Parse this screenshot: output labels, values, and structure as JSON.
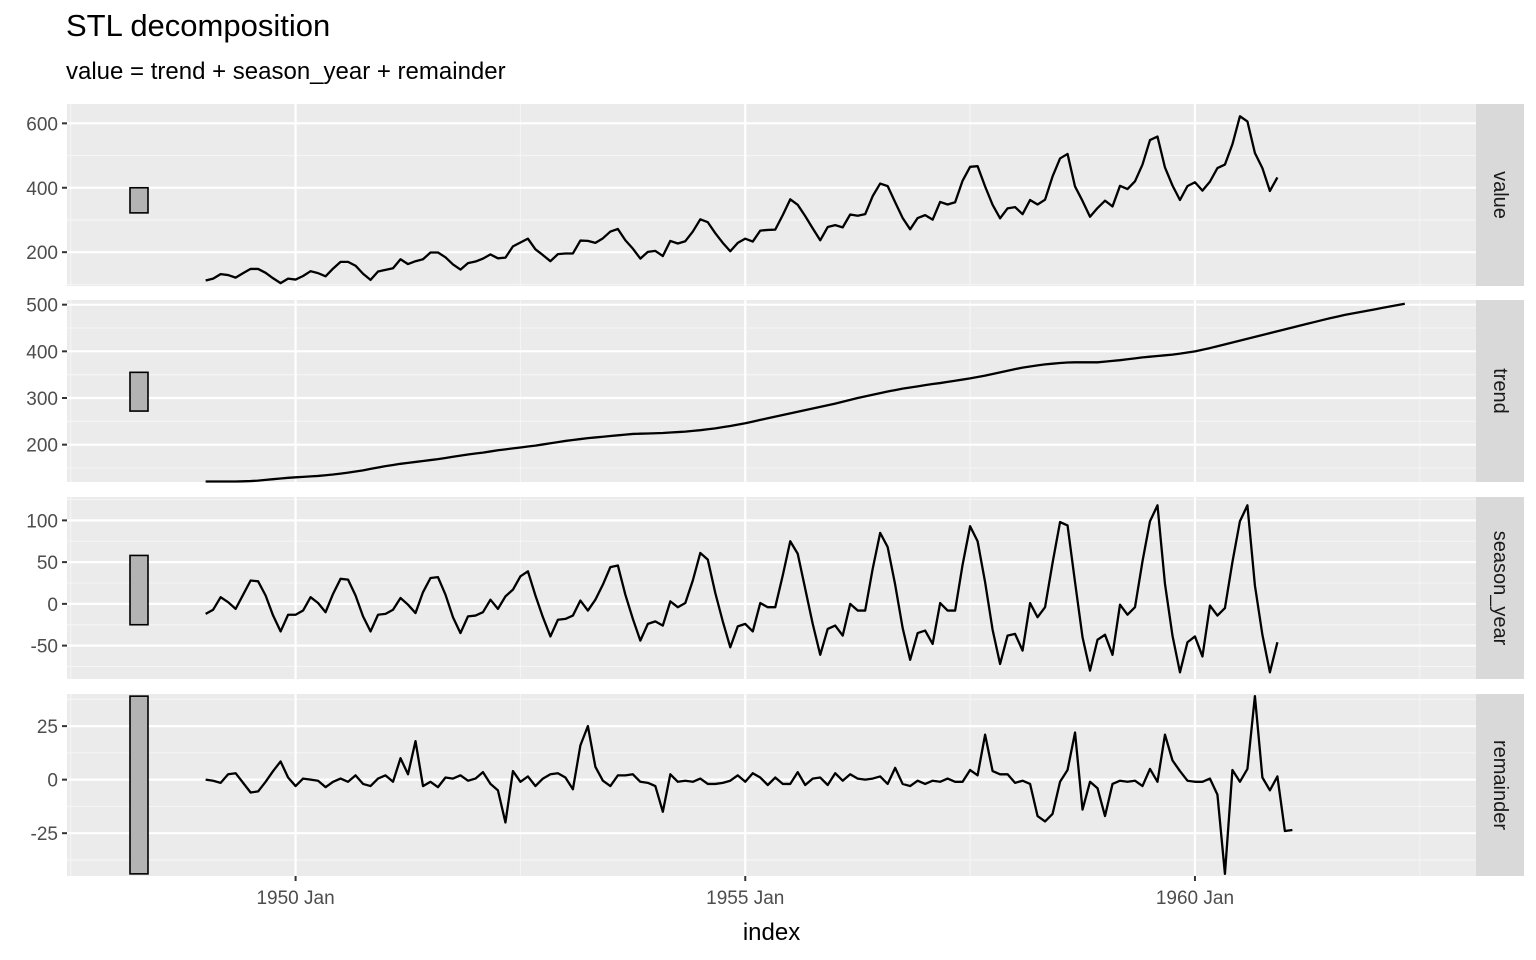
{
  "chart_data": {
    "type": "line",
    "title": "STL decomposition",
    "subtitle": "value = trend + season_year + remainder",
    "xlabel": "index",
    "x_start": "1949 Jan",
    "x_frequency": "monthly",
    "x_ticks": [
      "1950 Jan",
      "1955 Jan",
      "1960 Jan"
    ],
    "grid": true,
    "panels": [
      {
        "name": "value",
        "ylim": [
          95,
          660
        ],
        "yticks": [
          200,
          400,
          600
        ],
        "range_bar": [
          322,
          400
        ],
        "values": [
          112,
          118,
          132,
          129,
          121,
          135,
          148,
          148,
          136,
          119,
          104,
          118,
          115,
          126,
          141,
          135,
          125,
          149,
          170,
          170,
          158,
          133,
          114,
          140,
          145,
          150,
          178,
          163,
          172,
          178,
          199,
          199,
          184,
          162,
          146,
          166,
          171,
          180,
          193,
          181,
          183,
          218,
          230,
          242,
          209,
          191,
          172,
          194,
          196,
          196,
          236,
          235,
          229,
          243,
          264,
          272,
          237,
          211,
          180,
          201,
          204,
          188,
          235,
          227,
          234,
          264,
          302,
          293,
          259,
          229,
          203,
          229,
          242,
          233,
          267,
          269,
          270,
          315,
          364,
          347,
          312,
          274,
          237,
          278,
          284,
          277,
          317,
          313,
          318,
          374,
          413,
          405,
          355,
          306,
          271,
          306,
          315,
          301,
          356,
          348,
          355,
          422,
          465,
          467,
          404,
          347,
          305,
          336,
          340,
          318,
          362,
          348,
          363,
          435,
          491,
          505,
          404,
          359,
          310,
          337,
          360,
          342,
          406,
          396,
          420,
          472,
          548,
          559,
          463,
          407,
          362,
          405,
          417,
          391,
          419,
          461,
          472,
          535,
          622,
          606,
          508,
          461,
          390,
          432
        ]
      },
      {
        "name": "trend",
        "ylim": [
          120,
          510
        ],
        "yticks": [
          200,
          300,
          400,
          500
        ],
        "range_bar": [
          272,
          355
        ],
        "values": [
          121,
          121,
          121,
          121,
          121,
          121.5,
          122,
          123,
          124.5,
          126,
          127.5,
          129,
          130,
          131,
          132,
          133,
          134.5,
          136,
          138,
          140,
          142.5,
          145,
          148,
          151,
          154,
          156.5,
          159,
          161,
          163,
          165,
          167,
          169,
          171.5,
          174,
          176.5,
          179,
          181,
          183,
          185.5,
          188,
          190,
          192,
          194,
          196,
          198,
          200.5,
          203,
          205.5,
          208,
          210,
          212,
          214,
          215.5,
          217,
          218.5,
          220,
          221.5,
          223,
          223.5,
          224,
          224.5,
          225,
          226,
          227,
          228,
          229.5,
          231,
          233,
          235,
          237.5,
          240,
          243,
          246,
          249.5,
          253,
          256.5,
          260,
          263.5,
          267,
          270.5,
          274,
          277.5,
          281,
          284.5,
          288,
          292,
          296,
          300,
          303.5,
          307,
          310.5,
          314,
          317,
          320,
          322.5,
          325,
          327.5,
          330,
          332,
          334.5,
          337,
          339.5,
          342,
          345,
          348,
          351.5,
          355,
          358.5,
          362,
          365,
          367.5,
          370,
          372,
          373.5,
          375,
          376,
          376.5,
          376.5,
          376.5,
          376.5,
          378,
          379.5,
          381,
          383,
          385,
          387,
          388.5,
          390,
          391.5,
          393,
          395,
          397.5,
          400,
          403.5,
          407,
          411,
          415,
          419,
          423,
          427,
          431,
          435,
          439,
          443,
          447,
          451,
          455,
          459,
          463,
          467,
          471,
          474.5,
          478,
          481,
          484,
          487,
          490,
          493,
          496,
          499,
          502
        ]
      },
      {
        "name": "season_year",
        "ylim": [
          -90,
          128
        ],
        "yticks": [
          -50,
          0,
          50,
          100
        ],
        "range_bar": [
          -25,
          58
        ],
        "values": [
          -12,
          -7,
          8,
          2,
          -6,
          11,
          28,
          27,
          10,
          -14,
          -33,
          -13,
          -13,
          -8,
          8,
          1,
          -10,
          12,
          30,
          29,
          10,
          -15,
          -33,
          -13,
          -12,
          -7,
          7,
          -1,
          -11,
          14,
          31,
          32,
          11,
          -16,
          -35,
          -15,
          -14,
          -10,
          5,
          -6,
          9,
          17,
          33,
          39,
          10,
          -16,
          -39,
          -19,
          -18,
          -14,
          4,
          -8,
          5,
          23,
          44,
          46,
          11,
          -18,
          -44,
          -24,
          -21,
          -26,
          3,
          -4,
          1,
          28,
          61,
          53,
          13,
          -21,
          -52,
          -27,
          -24,
          -33,
          1,
          -4,
          -4,
          34,
          75,
          60,
          18,
          -24,
          -61,
          -30,
          -26,
          -38,
          0,
          -8,
          -8,
          42,
          85,
          68,
          23,
          -29,
          -67,
          -35,
          -32,
          -48,
          1,
          -8,
          -8,
          47,
          93,
          75,
          26,
          -31,
          -72,
          -38,
          -36,
          -56,
          1,
          -16,
          -4,
          49,
          98,
          94,
          26,
          -40,
          -80,
          -43,
          -37,
          -61,
          -1,
          -13,
          -4,
          51,
          99,
          118,
          24,
          -38,
          -82,
          -46,
          -39,
          -63,
          -2,
          -14,
          -5,
          50,
          99,
          118,
          22,
          -37,
          -82,
          -46
        ]
      },
      {
        "name": "remainder",
        "ylim": [
          -45,
          40
        ],
        "yticks": [
          -25,
          0,
          25
        ],
        "range_bar": [
          -44,
          39
        ],
        "values": [
          0,
          -0.5,
          -1.5,
          2.5,
          3,
          -1.5,
          -6,
          -5.5,
          -1,
          4,
          8.5,
          1,
          -3,
          0.5,
          0,
          -0.5,
          -3.5,
          -1,
          0.5,
          -1,
          2,
          -2,
          -3,
          0.5,
          2,
          -1,
          10,
          2.5,
          18,
          -3,
          -1,
          -3.5,
          1,
          0.5,
          2,
          -0.5,
          0.5,
          3.5,
          -2,
          -5,
          -20,
          4,
          -1,
          1.5,
          -3,
          0.5,
          2.5,
          3,
          1,
          -4.5,
          16,
          25,
          6,
          -0.5,
          -3,
          2,
          2,
          2.5,
          -1,
          -1.5,
          -3,
          -15,
          2.5,
          -1,
          -0.5,
          -1,
          0.5,
          -2,
          -2,
          -1.5,
          -0.5,
          2,
          -1,
          3,
          1,
          -2.5,
          1,
          -2,
          -2,
          3.5,
          -2.5,
          0.5,
          1,
          -2.5,
          3,
          -0.5,
          2.5,
          0.5,
          0,
          0.5,
          1.5,
          -2,
          5.5,
          -2,
          -3,
          -0.5,
          -2,
          -0.5,
          -1,
          0.5,
          -1,
          -1,
          4.5,
          2,
          21,
          4,
          2.5,
          2.5,
          -1.5,
          -0.5,
          -2,
          -17,
          -19.5,
          -16,
          -1,
          4.5,
          22,
          -14,
          -1,
          -4,
          -17,
          -2,
          -0.5,
          -1,
          -0.5,
          -3,
          5,
          -1,
          21,
          9,
          4,
          -0.5,
          -1,
          -1,
          0.5,
          -7,
          -44,
          4.5,
          -1,
          5,
          39,
          1,
          -5,
          1.5,
          -24,
          -23.5
        ]
      }
    ]
  }
}
